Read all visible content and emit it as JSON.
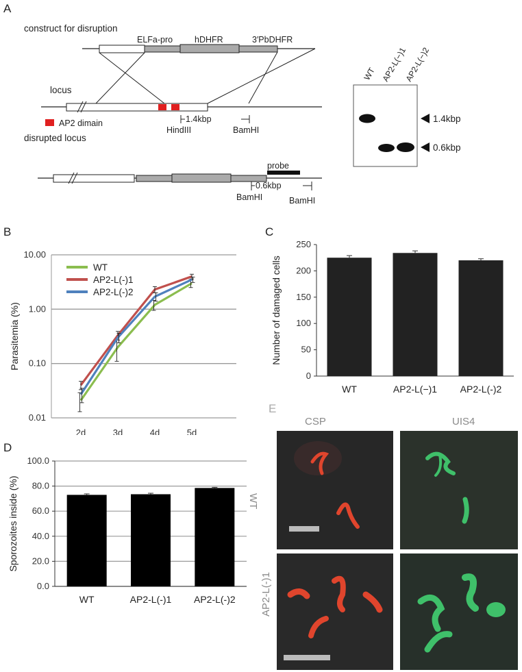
{
  "panels": {
    "A": {
      "letter": "A",
      "construct_title": "construct for disruption",
      "elfa_pro": "ELFa-pro",
      "hdhfr": "hDHFR",
      "pbdhfr": "3′PbDHFR",
      "locus": "locus",
      "legend_ap2": "AP2 dimain",
      "disrupted_locus": "disrupted locus",
      "hindiii": "HindIII",
      "bamhi": "BamHI",
      "kbp_14": "1.4kbp",
      "kbp_06": "0.6kbp",
      "probe": "probe",
      "gel_lanes": [
        "WT",
        "AP2-L(−)1",
        "AP2-L(−)2"
      ],
      "gel_bands": [
        "1.4kbp",
        "0.6kbp"
      ],
      "colors": {
        "ap2": "#e02020",
        "gray_box": "#aaaaaa"
      }
    },
    "B": {
      "letter": "B"
    },
    "C": {
      "letter": "C"
    },
    "D": {
      "letter": "D"
    },
    "E": {
      "letter": "E",
      "columns": [
        "CSP",
        "UIS4"
      ],
      "rows": [
        "WT",
        "AP2-L(-)1"
      ],
      "colors": {
        "csp": "#e0452d",
        "uis4": "#3fc06a"
      }
    }
  },
  "chart_data": [
    {
      "panel": "B",
      "type": "line",
      "ylabel": "Parasitemia (%)",
      "xlabel": "",
      "y_scale": "log",
      "ylim": [
        0.01,
        10
      ],
      "y_ticks": [
        "0.01",
        "0.10",
        "1.00",
        "10.00"
      ],
      "categories": [
        "2d",
        "3d",
        "4d",
        "5d"
      ],
      "grid": true,
      "legend_position": "top-left",
      "series": [
        {
          "name": "WT",
          "color": "#8bbd4f",
          "values": [
            0.021,
            0.2,
            1.2,
            3.0
          ],
          "err": [
            0.008,
            0.09,
            0.25,
            0.5
          ]
        },
        {
          "name": "AP2-L(-)1",
          "color": "#c0504d",
          "values": [
            0.04,
            0.33,
            2.3,
            4.0
          ],
          "err": [
            0.007,
            0.06,
            0.3,
            0.4
          ]
        },
        {
          "name": "AP2-L(-)2",
          "color": "#4f81bd",
          "values": [
            0.027,
            0.3,
            1.7,
            3.5
          ],
          "err": [
            0.008,
            0.06,
            0.3,
            0.4
          ]
        }
      ]
    },
    {
      "panel": "C",
      "type": "bar",
      "ylabel": "Number of damaged cells",
      "xlabel": "",
      "ylim": [
        0,
        250
      ],
      "y_ticks": [
        "0",
        "50",
        "100",
        "150",
        "200",
        "250"
      ],
      "categories": [
        "WT",
        "AP2-L(−)1",
        "AP2-L(-)2"
      ],
      "values": [
        225,
        234,
        220
      ],
      "err": [
        4,
        4,
        3
      ],
      "bar_color": "#222222",
      "grid": false
    },
    {
      "panel": "D",
      "type": "bar",
      "ylabel": "Sporozoites inside (%)",
      "xlabel": "",
      "ylim": [
        0,
        100
      ],
      "y_ticks": [
        "0.0",
        "20.0",
        "40.0",
        "60.0",
        "80.0",
        "100.0"
      ],
      "categories": [
        "WT",
        "AP2-L(-)1",
        "AP2-L(-)2"
      ],
      "values": [
        73,
        73.5,
        78.5
      ],
      "err": [
        0.8,
        0.8,
        0.5
      ],
      "bar_color": "#000000",
      "grid": true
    }
  ]
}
